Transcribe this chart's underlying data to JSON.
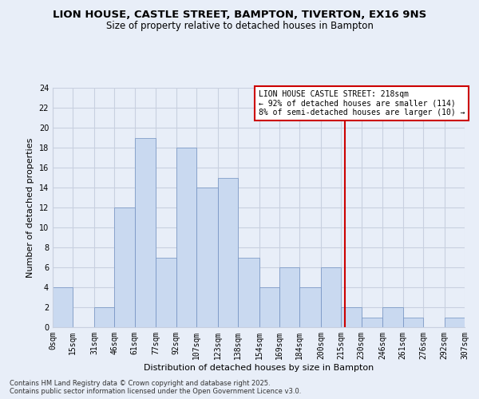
{
  "title": "LION HOUSE, CASTLE STREET, BAMPTON, TIVERTON, EX16 9NS",
  "subtitle": "Size of property relative to detached houses in Bampton",
  "xlabel": "Distribution of detached houses by size in Bampton",
  "ylabel": "Number of detached properties",
  "bin_edges": [
    0,
    15,
    31,
    46,
    61,
    77,
    92,
    107,
    123,
    138,
    154,
    169,
    184,
    200,
    215,
    230,
    246,
    261,
    276,
    292,
    307
  ],
  "bin_labels": [
    "0sqm",
    "15sqm",
    "31sqm",
    "46sqm",
    "61sqm",
    "77sqm",
    "92sqm",
    "107sqm",
    "123sqm",
    "138sqm",
    "154sqm",
    "169sqm",
    "184sqm",
    "200sqm",
    "215sqm",
    "230sqm",
    "246sqm",
    "261sqm",
    "276sqm",
    "292sqm",
    "307sqm"
  ],
  "counts": [
    4,
    0,
    2,
    12,
    19,
    7,
    18,
    14,
    15,
    7,
    4,
    6,
    4,
    6,
    2,
    1,
    2,
    1,
    0,
    1
  ],
  "bar_color": "#c9d9f0",
  "bar_edge_color": "#7090c0",
  "property_value": 218,
  "vline_color": "#cc0000",
  "ylim": [
    0,
    24
  ],
  "yticks": [
    0,
    2,
    4,
    6,
    8,
    10,
    12,
    14,
    16,
    18,
    20,
    22,
    24
  ],
  "annotation_title": "LION HOUSE CASTLE STREET: 218sqm",
  "annotation_line1": "← 92% of detached houses are smaller (114)",
  "annotation_line2": "8% of semi-detached houses are larger (10) →",
  "annotation_box_color": "#ffffff",
  "annotation_box_edge": "#cc0000",
  "grid_color": "#c8d0e0",
  "background_color": "#e8eef8",
  "footer_line1": "Contains HM Land Registry data © Crown copyright and database right 2025.",
  "footer_line2": "Contains public sector information licensed under the Open Government Licence v3.0.",
  "title_fontsize": 9.5,
  "subtitle_fontsize": 8.5,
  "axis_label_fontsize": 8,
  "tick_fontsize": 7,
  "annotation_fontsize": 7,
  "footer_fontsize": 6
}
